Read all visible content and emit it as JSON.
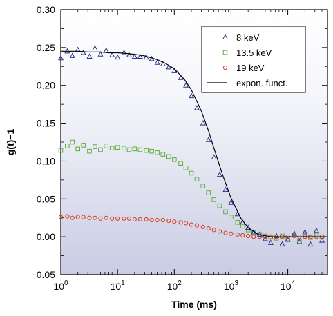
{
  "chart_data": {
    "type": "scatter",
    "xlabel": "Time (ms)",
    "ylabel": "g(t)−1",
    "x_scale": "log",
    "xlim": [
      1,
      50000
    ],
    "ylim": [
      -0.05,
      0.3
    ],
    "grid": false,
    "legend_position": "top-right",
    "x_ticks": [
      {
        "value": 1,
        "base": "10",
        "exp": "0"
      },
      {
        "value": 10,
        "base": "10",
        "exp": "1"
      },
      {
        "value": 100,
        "base": "10",
        "exp": "2"
      },
      {
        "value": 1000,
        "base": "10",
        "exp": "3"
      },
      {
        "value": 10000,
        "base": "10",
        "exp": "4"
      }
    ],
    "y_ticks": [
      {
        "value": -0.05,
        "label": "−0.05"
      },
      {
        "value": 0.0,
        "label": "0.00"
      },
      {
        "value": 0.05,
        "label": "0.05"
      },
      {
        "value": 0.1,
        "label": "0.10"
      },
      {
        "value": 0.15,
        "label": "0.15"
      },
      {
        "value": 0.2,
        "label": "0.20"
      },
      {
        "value": 0.25,
        "label": "0.25"
      },
      {
        "value": 0.3,
        "label": "0.30"
      }
    ],
    "series": [
      {
        "name": "8 keV",
        "marker": "triangle",
        "color": "#2e2e8c",
        "x": [
          1,
          1.3,
          1.6,
          2,
          2.5,
          3.2,
          4,
          5,
          6.3,
          8,
          10,
          13,
          16,
          20,
          25,
          32,
          40,
          50,
          63,
          80,
          100,
          130,
          160,
          200,
          250,
          320,
          400,
          500,
          630,
          800,
          1000,
          1300,
          1600,
          2000,
          2500,
          3200,
          4000,
          5000,
          6300,
          8000,
          10000,
          13000,
          16000,
          20000,
          25000,
          32000,
          40000
        ],
        "y": [
          0.236,
          0.245,
          0.239,
          0.247,
          0.243,
          0.238,
          0.249,
          0.241,
          0.246,
          0.24,
          0.237,
          0.243,
          0.24,
          0.238,
          0.238,
          0.237,
          0.235,
          0.23,
          0.228,
          0.224,
          0.219,
          0.21,
          0.2,
          0.186,
          0.17,
          0.15,
          0.128,
          0.105,
          0.082,
          0.062,
          0.045,
          0.03,
          0.019,
          0.012,
          0.006,
          0.003,
          -0.003,
          -0.008,
          0.001,
          -0.01,
          -0.004,
          0.004,
          -0.007,
          0.006,
          -0.01,
          0.008,
          -0.005
        ]
      },
      {
        "name": "13.5 keV",
        "marker": "square",
        "color": "#5cb03a",
        "x": [
          1,
          1.3,
          1.6,
          2,
          2.5,
          3.2,
          4,
          5,
          6.3,
          8,
          10,
          13,
          16,
          20,
          25,
          32,
          40,
          50,
          63,
          80,
          100,
          130,
          160,
          200,
          250,
          320,
          400,
          500,
          630,
          800,
          1000,
          1300,
          1600,
          2000,
          2500,
          3200,
          4000,
          5000,
          6300,
          8000,
          10000,
          13000,
          16000,
          20000,
          25000,
          32000,
          40000
        ],
        "y": [
          0.114,
          0.12,
          0.125,
          0.116,
          0.121,
          0.113,
          0.119,
          0.115,
          0.12,
          0.117,
          0.118,
          0.117,
          0.115,
          0.116,
          0.115,
          0.114,
          0.113,
          0.111,
          0.109,
          0.106,
          0.102,
          0.097,
          0.091,
          0.084,
          0.076,
          0.067,
          0.058,
          0.049,
          0.041,
          0.033,
          0.026,
          0.019,
          0.014,
          0.009,
          0.005,
          0.003,
          0.001,
          0.0,
          -0.002,
          0.001,
          -0.003,
          0.002,
          -0.006,
          0.003,
          -0.001,
          0.002,
          0.0
        ]
      },
      {
        "name": "19 keV",
        "marker": "circle",
        "color": "#d93a1e",
        "x": [
          1,
          1.3,
          1.6,
          2,
          2.5,
          3.2,
          4,
          5,
          6.3,
          8,
          10,
          13,
          16,
          20,
          25,
          32,
          40,
          50,
          63,
          80,
          100,
          130,
          160,
          200,
          250,
          320,
          400,
          500,
          630,
          800,
          1000,
          1300,
          1600,
          2000,
          2500,
          3200,
          4000,
          5000,
          6300,
          8000,
          10000,
          13000,
          16000,
          20000,
          25000,
          32000,
          40000
        ],
        "y": [
          0.026,
          0.027,
          0.025,
          0.026,
          0.026,
          0.025,
          0.025,
          0.024,
          0.025,
          0.024,
          0.024,
          0.024,
          0.024,
          0.023,
          0.023,
          0.023,
          0.022,
          0.022,
          0.022,
          0.021,
          0.02,
          0.019,
          0.018,
          0.016,
          0.015,
          0.013,
          0.011,
          0.009,
          0.007,
          0.005,
          0.004,
          0.003,
          0.002,
          0.001,
          0.0,
          0.0,
          0.0,
          -0.001,
          0.0,
          0.0,
          0.0,
          0.001,
          0.0,
          0.0,
          0.0,
          0.0,
          0.0
        ]
      },
      {
        "name": "expon. funct.",
        "marker": "line",
        "color": "#000000",
        "x": [
          1,
          1.5,
          2,
          3,
          5,
          7,
          10,
          15,
          20,
          30,
          50,
          70,
          100,
          150,
          200,
          300,
          400,
          500,
          700,
          1000,
          1500,
          2000,
          3000,
          5000,
          10000,
          20000,
          50000
        ],
        "y": [
          0.245,
          0.245,
          0.245,
          0.244,
          0.244,
          0.243,
          0.243,
          0.242,
          0.241,
          0.239,
          0.234,
          0.229,
          0.222,
          0.208,
          0.194,
          0.166,
          0.14,
          0.117,
          0.083,
          0.051,
          0.024,
          0.012,
          0.003,
          0.0,
          0.0,
          0.0,
          0.0
        ]
      }
    ]
  }
}
